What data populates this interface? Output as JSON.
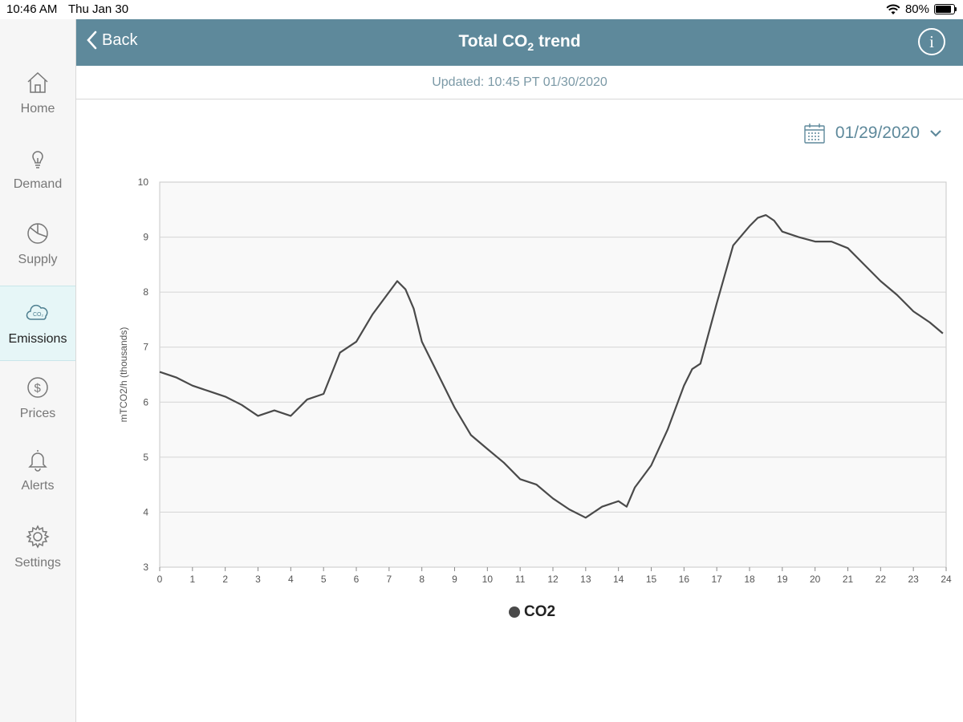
{
  "status_bar": {
    "time": "10:46 AM",
    "date": "Thu Jan 30",
    "battery": "80%"
  },
  "sidebar": {
    "items": [
      {
        "label": "Home",
        "icon": "home-icon",
        "active": false
      },
      {
        "label": "Demand",
        "icon": "lightbulb-icon",
        "active": false
      },
      {
        "label": "Supply",
        "icon": "pie-chart-icon",
        "active": false
      },
      {
        "label": "Emissions",
        "icon": "co2-cloud-icon",
        "active": true
      },
      {
        "label": "Prices",
        "icon": "dollar-icon",
        "active": false
      },
      {
        "label": "Alerts",
        "icon": "bell-icon",
        "active": false
      },
      {
        "label": "Settings",
        "icon": "gear-icon",
        "active": false
      }
    ]
  },
  "header": {
    "back_label": "Back",
    "title_prefix": "Total CO",
    "title_sub": "2",
    "title_suffix": " trend"
  },
  "updated": "Updated: 10:45 PT 01/30/2020",
  "date_picker": {
    "value": "01/29/2020"
  },
  "colors": {
    "header": "#5e899b",
    "accent": "#5e899b",
    "line": "#4a4a4a",
    "active_nav": "#e6f6f7"
  },
  "chart_data": {
    "type": "line",
    "title": "",
    "ylabel": "mTCO2/h (thousands)",
    "xlim": [
      0,
      24
    ],
    "ylim": [
      3,
      10
    ],
    "xticks": [
      0,
      1,
      2,
      3,
      4,
      5,
      6,
      7,
      8,
      9,
      10,
      11,
      12,
      13,
      14,
      15,
      16,
      17,
      18,
      19,
      20,
      21,
      22,
      23,
      24
    ],
    "yticks": [
      3,
      4,
      5,
      6,
      7,
      8,
      9,
      10
    ],
    "grid": true,
    "legend": "bottom",
    "series": [
      {
        "name": "CO2",
        "x": [
          0,
          0.5,
          1,
          1.5,
          2,
          2.5,
          3,
          3.5,
          4,
          4.5,
          5,
          5.5,
          6,
          6.5,
          7,
          7.25,
          7.5,
          7.75,
          8,
          8.5,
          9,
          9.5,
          10,
          10.5,
          11,
          11.5,
          12,
          12.5,
          13,
          13.5,
          14,
          14.25,
          14.5,
          15,
          15.5,
          16,
          16.25,
          16.5,
          17,
          17.5,
          18,
          18.25,
          18.5,
          18.75,
          19,
          19.5,
          20,
          20.5,
          21,
          21.5,
          22,
          22.5,
          23,
          23.5,
          23.9
        ],
        "y": [
          6.55,
          6.45,
          6.3,
          6.2,
          6.1,
          5.95,
          5.75,
          5.85,
          5.75,
          6.05,
          6.15,
          6.9,
          7.1,
          7.6,
          8.0,
          8.2,
          8.05,
          7.7,
          7.1,
          6.5,
          5.9,
          5.4,
          5.15,
          4.9,
          4.6,
          4.5,
          4.25,
          4.05,
          3.9,
          4.1,
          4.2,
          4.1,
          4.45,
          4.85,
          5.5,
          6.3,
          6.6,
          6.7,
          7.8,
          8.85,
          9.2,
          9.35,
          9.4,
          9.3,
          9.1,
          9.0,
          8.92,
          8.92,
          8.8,
          8.5,
          8.2,
          7.95,
          7.65,
          7.45,
          7.25
        ]
      }
    ]
  }
}
